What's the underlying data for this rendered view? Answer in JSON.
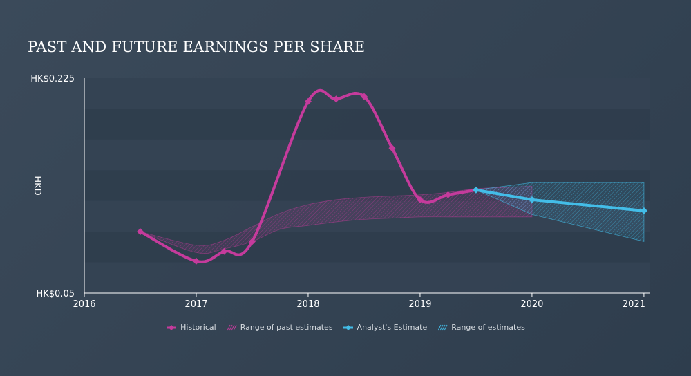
{
  "title": "PAST AND FUTURE EARNINGS PER SHARE",
  "colors": {
    "historical": "#c53b9c",
    "estimate": "#43bde8",
    "band_dark": "#2f3d4c",
    "band_light": "#344353"
  },
  "chart_data": {
    "type": "line",
    "title": "PAST AND FUTURE EARNINGS PER SHARE",
    "ylabel": "HKD",
    "xlabel": "",
    "ylim": [
      0.05,
      0.225
    ],
    "xlim": [
      2016,
      2021.05
    ],
    "y_tick_labels": [
      {
        "value": 0.225,
        "label": "HK$0.225"
      },
      {
        "value": 0.05,
        "label": "HK$0.05"
      }
    ],
    "x_tick_labels": [
      {
        "value": 2016,
        "label": "2016"
      },
      {
        "value": 2017,
        "label": "2017"
      },
      {
        "value": 2018,
        "label": "2018"
      },
      {
        "value": 2019,
        "label": "2019"
      },
      {
        "value": 2020,
        "label": "2020"
      },
      {
        "value": 2021,
        "label": "2021"
      }
    ],
    "series": [
      {
        "name": "Historical",
        "points": [
          [
            2016.5,
            0.1
          ],
          [
            2017.0,
            0.076
          ],
          [
            2017.25,
            0.084
          ],
          [
            2017.5,
            0.092
          ],
          [
            2018.0,
            0.206
          ],
          [
            2018.25,
            0.208
          ],
          [
            2018.5,
            0.21
          ],
          [
            2018.75,
            0.168
          ],
          [
            2019.0,
            0.126
          ],
          [
            2019.25,
            0.13
          ],
          [
            2019.5,
            0.134
          ]
        ]
      },
      {
        "name": "Analyst's Estimate",
        "points": [
          [
            2019.5,
            0.134
          ],
          [
            2020.0,
            0.126
          ],
          [
            2021.0,
            0.117
          ]
        ]
      }
    ],
    "past_estimate_range": {
      "name": "Range of past estimates",
      "upper": [
        [
          2016.5,
          0.1
        ],
        [
          2017.0,
          0.089
        ],
        [
          2017.25,
          0.093
        ],
        [
          2017.5,
          0.104
        ],
        [
          2017.75,
          0.115
        ],
        [
          2018.0,
          0.122
        ],
        [
          2018.25,
          0.126
        ],
        [
          2018.5,
          0.128
        ],
        [
          2018.75,
          0.129
        ],
        [
          2019.0,
          0.13
        ],
        [
          2019.25,
          0.132
        ],
        [
          2019.5,
          0.135
        ],
        [
          2019.75,
          0.136
        ],
        [
          2020.0,
          0.137
        ]
      ],
      "lower": [
        [
          2016.5,
          0.1
        ],
        [
          2017.0,
          0.083
        ],
        [
          2017.25,
          0.086
        ],
        [
          2017.5,
          0.092
        ],
        [
          2017.75,
          0.102
        ],
        [
          2018.0,
          0.105
        ],
        [
          2018.25,
          0.108
        ],
        [
          2018.5,
          0.11
        ],
        [
          2018.75,
          0.111
        ],
        [
          2019.0,
          0.112
        ],
        [
          2019.25,
          0.112
        ],
        [
          2019.5,
          0.112
        ],
        [
          2019.75,
          0.112
        ],
        [
          2020.0,
          0.112
        ]
      ]
    },
    "future_estimate_range": {
      "name": "Range of estimates",
      "upper": [
        [
          2019.5,
          0.134
        ],
        [
          2020.0,
          0.14
        ],
        [
          2021.0,
          0.14
        ]
      ],
      "lower": [
        [
          2019.5,
          0.134
        ],
        [
          2020.0,
          0.114
        ],
        [
          2021.0,
          0.092
        ]
      ]
    },
    "legend": [
      {
        "label": "Historical",
        "kind": "line",
        "color": "#c53b9c"
      },
      {
        "label": "Range of past estimates",
        "kind": "hatch",
        "color": "#c53b9c"
      },
      {
        "label": "Analyst's Estimate",
        "kind": "line",
        "color": "#43bde8"
      },
      {
        "label": "Range of estimates",
        "kind": "hatch",
        "color": "#43bde8"
      }
    ],
    "legend_position": "bottom-center",
    "grid": false
  }
}
